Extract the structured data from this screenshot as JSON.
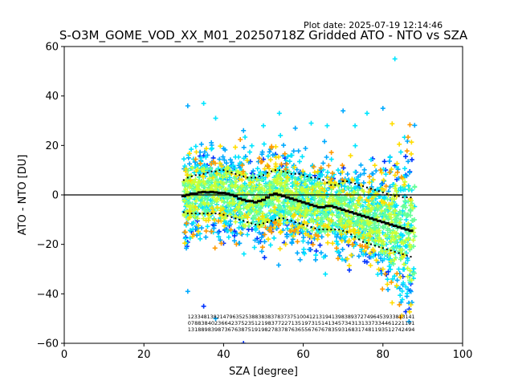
{
  "plot_date": "Plot date: 2025-07-19 12:14:46",
  "chart_data": {
    "type": "scatter",
    "title": "S-O3M_GOME_VOD_XX_M01_20250718Z Gridded ATO - NTO vs SZA",
    "xlabel": "SZA [degree]",
    "ylabel": "ATO - NTO [DU]",
    "xlim": [
      0,
      100
    ],
    "ylim": [
      -60,
      60
    ],
    "x_ticks": [
      "0",
      "20",
      "40",
      "60",
      "80",
      "100"
    ],
    "y_ticks": [
      "−60",
      "−40",
      "−20",
      "0",
      "20",
      "40",
      "60"
    ],
    "grid": false,
    "legend": "none",
    "marker": "+",
    "colormap": [
      "#0033ff",
      "#00aaff",
      "#00e5ff",
      "#66ff99",
      "#ccff33",
      "#ffdd00",
      "#ff9900"
    ],
    "zero_line": 0,
    "scatter_extent": {
      "sza_range": [
        29,
        88
      ],
      "point_sza_examples": [
        31,
        35,
        38,
        45,
        50,
        54,
        58,
        62,
        66,
        70,
        73,
        76,
        80,
        83,
        85,
        86,
        87
      ],
      "point_value_examples": [
        36,
        37,
        31,
        26,
        28,
        33,
        27,
        29,
        28,
        34,
        28,
        33,
        35,
        55,
        -33,
        -41,
        -36,
        -39,
        -45,
        -50,
        -60
      ]
    },
    "series": [
      {
        "role": "mean",
        "x": [
          30,
          31,
          32,
          33,
          34,
          35,
          36,
          37,
          38,
          39,
          40,
          41,
          42,
          43,
          44,
          45,
          46,
          47,
          48,
          49,
          50,
          51,
          52,
          53,
          54,
          55,
          56,
          57,
          58,
          59,
          60,
          61,
          62,
          63,
          64,
          65,
          66,
          67,
          68,
          69,
          70,
          71,
          72,
          73,
          74,
          75,
          76,
          77,
          78,
          79,
          80,
          81,
          82,
          83,
          84,
          85,
          86,
          87
        ],
        "y": [
          -0.5,
          0,
          0.5,
          0.5,
          1,
          1.2,
          1,
          1.2,
          1,
          0.8,
          0.8,
          0.5,
          0,
          -0.5,
          -1.5,
          -2,
          -2.5,
          -2.5,
          -3,
          -2.5,
          -2,
          -1,
          0,
          0.5,
          0,
          -0.5,
          -1,
          -1.5,
          -2,
          -2.5,
          -3,
          -3.5,
          -4,
          -4.5,
          -5,
          -5,
          -4.5,
          -4.5,
          -5,
          -5.5,
          -6,
          -6.5,
          -7,
          -7.5,
          -8,
          -8.5,
          -9,
          -9.5,
          -10,
          -10.5,
          -11,
          -11.5,
          -12,
          -12.5,
          -13,
          -13.5,
          -14,
          -14.5
        ]
      },
      {
        "role": "mean+std",
        "x": [
          30,
          31,
          32,
          33,
          34,
          35,
          36,
          37,
          38,
          39,
          40,
          41,
          42,
          43,
          44,
          45,
          46,
          47,
          48,
          49,
          50,
          51,
          52,
          53,
          54,
          55,
          56,
          57,
          58,
          59,
          60,
          61,
          62,
          63,
          64,
          65,
          66,
          67,
          68,
          69,
          70,
          71,
          72,
          73,
          74,
          75,
          76,
          77,
          78,
          79,
          80,
          81,
          82,
          83,
          84,
          85,
          86,
          87
        ],
        "y": [
          6,
          7,
          7.5,
          8,
          8,
          8.5,
          9,
          9.5,
          9.5,
          10,
          10,
          9.5,
          9,
          8.5,
          8,
          7.5,
          7,
          7,
          7,
          7.5,
          8,
          9,
          9.5,
          10,
          10,
          9.5,
          9,
          8.5,
          8.5,
          8.5,
          8,
          7.5,
          7,
          7,
          6.5,
          6,
          5,
          4,
          4,
          4.5,
          5.5,
          5.5,
          5,
          4.5,
          4,
          3.5,
          3,
          2.5,
          2,
          1.5,
          1,
          0.5,
          0,
          -0.5,
          -0.5,
          -1,
          -1,
          -1
        ]
      },
      {
        "role": "mean-std",
        "x": [
          30,
          31,
          32,
          33,
          34,
          35,
          36,
          37,
          38,
          39,
          40,
          41,
          42,
          43,
          44,
          45,
          46,
          47,
          48,
          49,
          50,
          51,
          52,
          53,
          54,
          55,
          56,
          57,
          58,
          59,
          60,
          61,
          62,
          63,
          64,
          65,
          66,
          67,
          68,
          69,
          70,
          71,
          72,
          73,
          74,
          75,
          76,
          77,
          78,
          79,
          80,
          81,
          82,
          83,
          84,
          85,
          86,
          87
        ],
        "y": [
          -7,
          -7.5,
          -7.5,
          -7.5,
          -7.5,
          -7.5,
          -7.5,
          -7.5,
          -7.5,
          -7.5,
          -8,
          -8.5,
          -9,
          -9.5,
          -10,
          -10.5,
          -11,
          -11.5,
          -12,
          -12,
          -11.5,
          -11,
          -10.5,
          -10,
          -9.5,
          -9.5,
          -10,
          -10.5,
          -11,
          -11.5,
          -12,
          -12.5,
          -13,
          -13.5,
          -14,
          -14,
          -14,
          -14,
          -14,
          -14,
          -14.5,
          -15,
          -16,
          -17,
          -18,
          -19,
          -19.5,
          -20,
          -20.5,
          -21,
          -21.5,
          -22,
          -22.5,
          -23,
          -23.5,
          -24,
          -24.5,
          -25
        ]
      }
    ],
    "count_labels": {
      "x_start": 31,
      "x_end": 88,
      "rows": [
        "12334813821479635253883838378373751004121319413983893727496453933813141",
        "07883840236642375235121983772271351973151413457343131337334461221191",
        "13188983987367638751919827837876365567676783593168317481193512742494"
      ]
    }
  }
}
